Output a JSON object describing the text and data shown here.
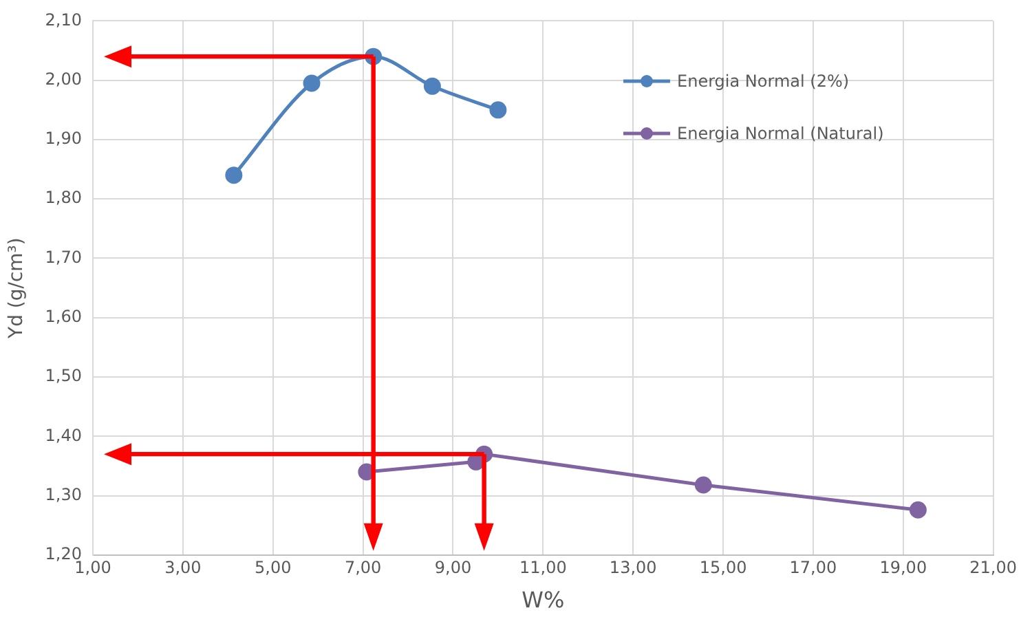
{
  "chart_data": {
    "type": "line",
    "xlabel": "W%",
    "ylabel": "Yd (g/cm³)",
    "xlim": [
      1,
      21
    ],
    "xticks": [
      {
        "value": 1,
        "label": "1,00"
      },
      {
        "value": 3,
        "label": "3,00"
      },
      {
        "value": 5,
        "label": "5,00"
      },
      {
        "value": 7,
        "label": "7,00"
      },
      {
        "value": 9,
        "label": "9,00"
      },
      {
        "value": 11,
        "label": "11,00"
      },
      {
        "value": 13,
        "label": "13,00"
      },
      {
        "value": 15,
        "label": "15,00"
      },
      {
        "value": 17,
        "label": "17,00"
      },
      {
        "value": 19,
        "label": "19,00"
      },
      {
        "value": 21,
        "label": "21,00"
      }
    ],
    "ylim": [
      1.2,
      2.1
    ],
    "yticks": [
      {
        "value": 1.2,
        "label": "1,20"
      },
      {
        "value": 1.3,
        "label": "1,30"
      },
      {
        "value": 1.4,
        "label": "1,40"
      },
      {
        "value": 1.5,
        "label": "1,50"
      },
      {
        "value": 1.6,
        "label": "1,60"
      },
      {
        "value": 1.7,
        "label": "1,70"
      },
      {
        "value": 1.8,
        "label": "1,80"
      },
      {
        "value": 1.9,
        "label": "1,90"
      },
      {
        "value": 2.0,
        "label": "2,00"
      },
      {
        "value": 2.1,
        "label": "2,10"
      }
    ],
    "grid": true,
    "legend": "top right",
    "marker": "circle",
    "line_style": "solid",
    "series": [
      {
        "name": "Energia Normal (2%)",
        "color": "#4f81bd",
        "x": [
          4.13,
          5.86,
          7.23,
          8.54,
          10.0
        ],
        "values": [
          1.84,
          1.995,
          2.04,
          1.99,
          1.95
        ]
      },
      {
        "name": "Energia Normal (Natural)",
        "color": "#8064a2",
        "x": [
          7.08,
          9.51,
          9.69,
          14.56,
          19.33
        ],
        "values": [
          1.34,
          1.357,
          1.37,
          1.318,
          1.276
        ]
      }
    ]
  }
}
